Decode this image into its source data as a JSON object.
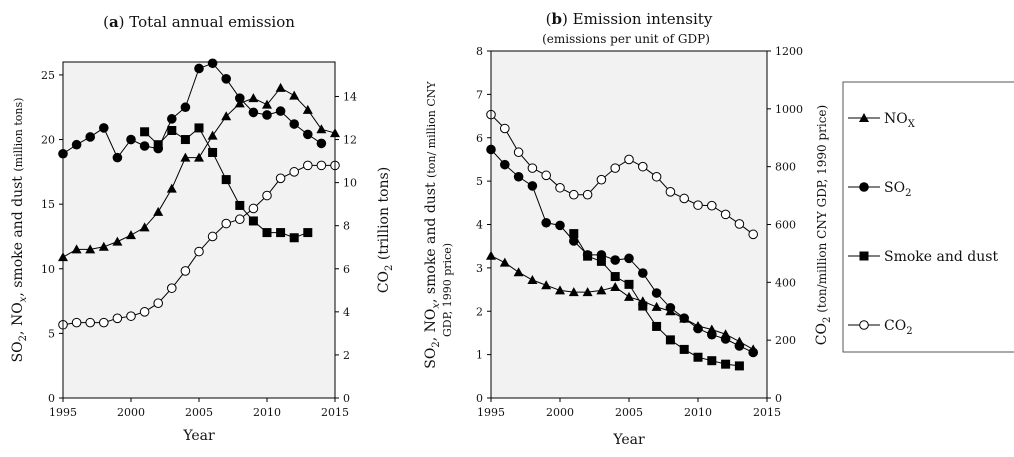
{
  "colors": {
    "plot_bg": "#f2f2f2",
    "line": "#000000",
    "marker_open_fill": "#ffffff"
  },
  "chart_data": [
    {
      "panel": "a",
      "type": "line",
      "title_prefix": "(a)",
      "title": "Total annual emission",
      "xlabel": "Year",
      "ylabel_left": "SO2, NOx, smoke and dust",
      "ylabel_left_unit": "(million tons)",
      "ylabel_right": "CO2 (trillion tons)",
      "xlim": [
        1995,
        2015
      ],
      "xticks": [
        1995,
        2000,
        2005,
        2010,
        2015
      ],
      "ylim_left": [
        0,
        26
      ],
      "yticks_left": [
        0,
        5,
        10,
        15,
        20,
        25
      ],
      "ylim_right": [
        0,
        15.6
      ],
      "yticks_right": [
        0,
        2,
        4,
        6,
        8,
        10,
        12,
        14
      ],
      "grid": false,
      "series": [
        {
          "name": "NOx",
          "marker": "triangle",
          "axis": "left",
          "x": [
            1995,
            1996,
            1997,
            1998,
            1999,
            2000,
            2001,
            2002,
            2003,
            2004,
            2005,
            2006,
            2007,
            2008,
            2009,
            2010,
            2011,
            2012,
            2013,
            2014,
            2015
          ],
          "y": [
            10.9,
            11.5,
            11.5,
            11.7,
            12.1,
            12.6,
            13.2,
            14.4,
            16.2,
            18.6,
            18.6,
            20.3,
            21.8,
            22.8,
            23.2,
            22.7,
            24.0,
            23.4,
            22.3,
            20.8,
            20.5
          ]
        },
        {
          "name": "SO2",
          "marker": "circle-filled",
          "axis": "left",
          "x": [
            1995,
            1996,
            1997,
            1998,
            1999,
            2000,
            2001,
            2002,
            2003,
            2004,
            2005,
            2006,
            2007,
            2008,
            2009,
            2010,
            2011,
            2012,
            2013,
            2014
          ],
          "y": [
            18.9,
            19.6,
            20.2,
            20.9,
            18.6,
            20.0,
            19.5,
            19.3,
            21.6,
            22.5,
            25.5,
            25.9,
            24.7,
            23.2,
            22.1,
            21.9,
            22.2,
            21.2,
            20.4,
            19.7
          ]
        },
        {
          "name": "Smoke and dust",
          "marker": "square",
          "axis": "left",
          "x": [
            2001,
            2002,
            2003,
            2004,
            2005,
            2006,
            2007,
            2008,
            2009,
            2010,
            2011,
            2012,
            2013
          ],
          "y": [
            20.6,
            19.6,
            20.7,
            20.0,
            20.9,
            19.0,
            16.9,
            14.9,
            13.7,
            12.8,
            12.8,
            12.4,
            12.8
          ]
        },
        {
          "name": "CO2",
          "marker": "circle-open",
          "axis": "right",
          "x": [
            1995,
            1996,
            1997,
            1998,
            1999,
            2000,
            2001,
            2002,
            2003,
            2004,
            2005,
            2006,
            2007,
            2008,
            2009,
            2010,
            2011,
            2012,
            2013,
            2014,
            2015
          ],
          "y": [
            3.4,
            3.5,
            3.5,
            3.5,
            3.7,
            3.8,
            4.0,
            4.4,
            5.1,
            5.9,
            6.8,
            7.5,
            8.1,
            8.3,
            8.8,
            9.4,
            10.2,
            10.5,
            10.8,
            10.8,
            10.8
          ]
        }
      ]
    },
    {
      "panel": "b",
      "type": "line",
      "title_prefix": "(b)",
      "title": "Emission intensity",
      "subtitle": "(emissions per unit of GDP)",
      "xlabel": "Year",
      "ylabel_left": "SO2, NOx, smoke and dust",
      "ylabel_left_unit": "(ton/ million CNY",
      "ylabel_left_unit2": "GDP, 1990 price)",
      "ylabel_right": "CO2 (ton/million CNY GDP, 1990 price)",
      "xlim": [
        1995,
        2015
      ],
      "xticks": [
        1995,
        2000,
        2005,
        2010,
        2015
      ],
      "ylim_left": [
        0,
        8
      ],
      "yticks_left": [
        0,
        1,
        2,
        3,
        4,
        5,
        6,
        7,
        8
      ],
      "ylim_right": [
        0,
        1200
      ],
      "yticks_right": [
        0,
        200,
        400,
        600,
        800,
        1000,
        1200
      ],
      "grid": false,
      "series": [
        {
          "name": "NOx",
          "marker": "triangle",
          "axis": "left",
          "x": [
            1995,
            1996,
            1997,
            1998,
            1999,
            2000,
            2001,
            2002,
            2003,
            2004,
            2005,
            2006,
            2007,
            2008,
            2009,
            2010,
            2011,
            2012,
            2013,
            2014
          ],
          "y": [
            3.28,
            3.12,
            2.9,
            2.72,
            2.6,
            2.48,
            2.44,
            2.44,
            2.48,
            2.56,
            2.33,
            2.23,
            2.1,
            2.0,
            1.83,
            1.66,
            1.58,
            1.47,
            1.3,
            1.12
          ]
        },
        {
          "name": "SO2",
          "marker": "circle-filled",
          "axis": "left",
          "x": [
            1995,
            1996,
            1997,
            1998,
            1999,
            2000,
            2001,
            2002,
            2003,
            2004,
            2005,
            2006,
            2007,
            2008,
            2009,
            2010,
            2011,
            2012,
            2013,
            2014
          ],
          "y": [
            5.73,
            5.38,
            5.1,
            4.89,
            4.04,
            3.98,
            3.62,
            3.3,
            3.3,
            3.18,
            3.22,
            2.88,
            2.42,
            2.08,
            1.84,
            1.6,
            1.46,
            1.36,
            1.2,
            1.05
          ]
        },
        {
          "name": "Smoke and dust",
          "marker": "square",
          "axis": "left",
          "x": [
            2001,
            2002,
            2003,
            2004,
            2005,
            2006,
            2007,
            2008,
            2009,
            2010,
            2011,
            2012,
            2013
          ],
          "y": [
            3.79,
            3.27,
            3.15,
            2.8,
            2.62,
            2.12,
            1.65,
            1.34,
            1.12,
            0.94,
            0.86,
            0.78,
            0.74
          ]
        },
        {
          "name": "CO2",
          "marker": "circle-open",
          "axis": "right",
          "x": [
            1995,
            1996,
            1997,
            1998,
            1999,
            2000,
            2001,
            2002,
            2003,
            2004,
            2005,
            2006,
            2007,
            2008,
            2009,
            2010,
            2011,
            2012,
            2013,
            2014
          ],
          "y": [
            980,
            932,
            850,
            795,
            770,
            727,
            703,
            703,
            755,
            795,
            825,
            800,
            765,
            713,
            690,
            667,
            665,
            635,
            602,
            566
          ]
        }
      ]
    }
  ],
  "legend": {
    "placement": "right",
    "items": [
      {
        "name": "NO",
        "sub": "X",
        "marker": "triangle"
      },
      {
        "name": "SO",
        "sub": "2",
        "marker": "circle-filled"
      },
      {
        "name": "Smoke and dust",
        "sub": "",
        "marker": "square"
      },
      {
        "name": "CO",
        "sub": "2",
        "marker": "circle-open"
      }
    ]
  }
}
